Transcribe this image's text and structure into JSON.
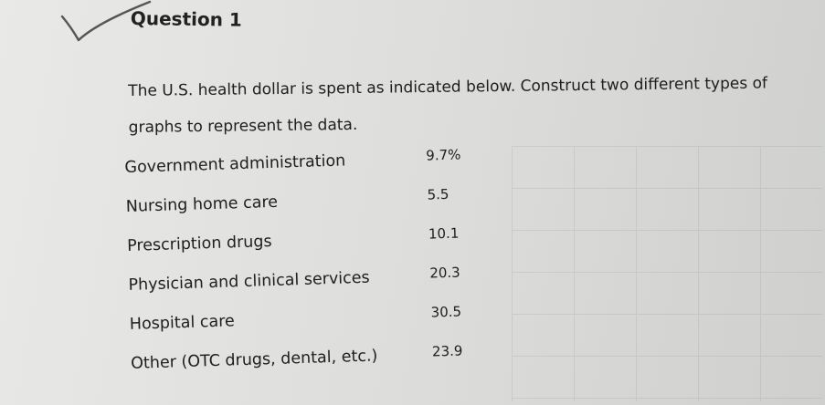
{
  "question": {
    "title": "Question 1",
    "prompt": "The U.S. health dollar is spent as indicated below. Construct two different types of graphs to represent the data."
  },
  "spending": [
    {
      "category": "Government administration",
      "value": "9.7%"
    },
    {
      "category": "Nursing home care",
      "value": "5.5"
    },
    {
      "category": "Prescription drugs",
      "value": "10.1"
    },
    {
      "category": "Physician and clinical services",
      "value": "20.3"
    },
    {
      "category": "Hospital care",
      "value": "30.5"
    },
    {
      "category": "Other (OTC drugs, dental, etc.)",
      "value": "23.9"
    }
  ],
  "colors": {
    "paper": "#e3e3e1",
    "ink": "#1e1e1e",
    "pencil": "#555555"
  }
}
